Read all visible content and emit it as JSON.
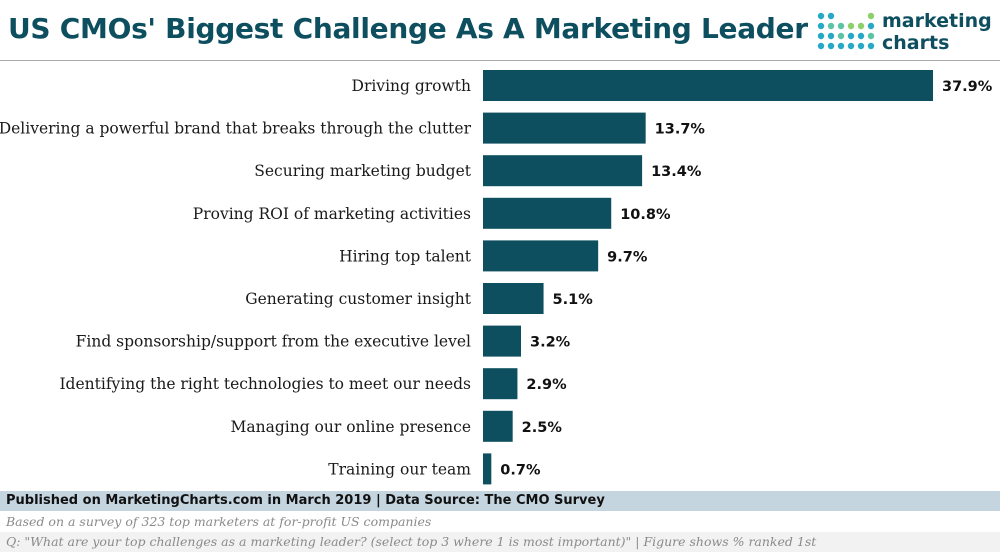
{
  "header": {
    "title": "US CMOs' Biggest Challenge As A Marketing Leader",
    "brand_line1": "marketing",
    "brand_line2": "charts"
  },
  "footer": {
    "published": "Published on MarketingCharts.com in March 2019 | Data Source: The CMO Survey",
    "note1": "Based on a survey of 323 top marketers at for-profit US companies",
    "note2": "Q: \"What are your top challenges as a marketing leader? (select top 3 where 1 is most important)\" | Figure shows % ranked 1st"
  },
  "colors": {
    "bar": "#0d4e5f",
    "title": "#0d4e5f",
    "footer_band": "#c5d5e0"
  },
  "chart_data": {
    "type": "bar",
    "orientation": "horizontal",
    "title": "US CMOs' Biggest Challenge As A Marketing Leader",
    "categories": [
      "Driving growth",
      "Delivering a powerful brand that breaks through the clutter",
      "Securing marketing budget",
      "Proving ROI of marketing activities",
      "Hiring top talent",
      "Generating customer insight",
      "Find sponsorship/support from the executive level",
      "Identifying the right technologies to meet our needs",
      "Managing our online presence",
      "Training our team"
    ],
    "values": [
      37.9,
      13.7,
      13.4,
      10.8,
      9.7,
      5.1,
      3.2,
      2.9,
      2.5,
      0.7
    ],
    "value_labels": [
      "37.9%",
      "13.7%",
      "13.4%",
      "10.8%",
      "9.7%",
      "5.1%",
      "3.2%",
      "2.9%",
      "2.5%",
      "0.7%"
    ],
    "unit": "%",
    "xlim": [
      0,
      37.9
    ],
    "xlabel": "",
    "ylabel": "",
    "grid": false,
    "legend": "none"
  }
}
